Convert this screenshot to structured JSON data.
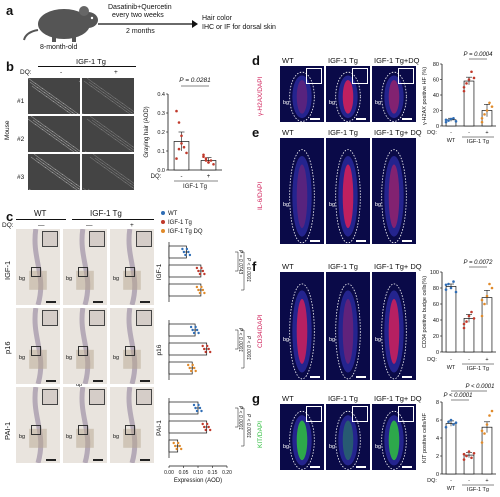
{
  "panel_labels": [
    "a",
    "b",
    "c",
    "d",
    "e",
    "f",
    "g"
  ],
  "panel_a": {
    "mouse_label": "8-month-old",
    "treatment_line1": "Dasatinib+Quercetin",
    "treatment_line2": "every two weeks",
    "duration": "2 months",
    "outcome_line1": "Hair color",
    "outcome_line2": "IHC or IF for dorsal skin"
  },
  "panel_b": {
    "group_header": "IGF-1 Tg",
    "dq_label": "DQ:",
    "dq_minus": "-",
    "dq_plus": "+",
    "row_axis": "Mouse",
    "rows": [
      "#1",
      "#2",
      "#3"
    ]
  },
  "panel_c": {
    "header_wt": "WT",
    "header_tg": "IGF-1 Tg",
    "dq_label": "DQ:",
    "dq_marks": [
      "—",
      "—",
      "+"
    ],
    "row_labels": [
      "IGF-1",
      "p16",
      "PAI-1"
    ],
    "bg_label": "bg",
    "dp_label": "dp"
  },
  "panel_d": {
    "headers": [
      "WT",
      "IGF-1 Tg",
      "IGF-1 Tg+DQ"
    ],
    "stain": "γ-H2AX/DAPI",
    "bg_label": "bg"
  },
  "panel_e": {
    "headers": [
      "WT",
      "IGF-1 Tg",
      "IGF-1 Tg+ DQ"
    ],
    "stain": "IL-6/DAPI",
    "bg_label": "bg"
  },
  "panel_f": {
    "headers": [
      "WT",
      "IGF-1 Tg",
      "IGF-1 Tg+ DQ"
    ],
    "stain": "CD34/DAPI",
    "bg_label": "bg"
  },
  "panel_g": {
    "headers": [
      "WT",
      "IGF-1 Tg",
      "IGF-1 Tg+ DQ"
    ],
    "stain": "KIT/DAPI",
    "bg_label": "bg"
  },
  "colors": {
    "wt": "#2f6db5",
    "tg": "#c0392b",
    "tgdq": "#e08a2a",
    "ifred": "#d0205a",
    "ifgreen": "#2fbf3f"
  },
  "chart_data": [
    {
      "type": "bar",
      "panel": "b",
      "ylabel": "Graying hair (AOD)",
      "xlabel": "IGF-1 Tg",
      "dq_label": "DQ:",
      "categories": [
        "-",
        "+"
      ],
      "values": [
        0.15,
        0.05
      ],
      "errors": [
        0.05,
        0.015
      ],
      "points": [
        [
          0.31,
          0.25,
          0.18,
          0.12,
          0.09,
          0.06,
          0.11,
          0.14
        ],
        [
          0.08,
          0.06,
          0.04,
          0.05,
          0.03,
          0.07,
          0.05,
          0.04
        ]
      ],
      "ylim": [
        0,
        0.4
      ],
      "yticks": [
        "0.0",
        "0.1",
        "0.2",
        "0.3",
        "0.4"
      ],
      "pvalue": "P = 0.0281"
    },
    {
      "type": "bar",
      "panel": "c",
      "orientation": "horizontal",
      "xlabel": "Expression (AOD)",
      "xlim": [
        0,
        0.2
      ],
      "xticks": [
        "0.00",
        "0.05",
        "0.10",
        "0.15",
        "0.20"
      ],
      "legend": [
        "WT",
        "IGF-1 Tg",
        "IGF-1 Tg DQ"
      ],
      "groups": [
        {
          "name": "IGF-1",
          "values": [
            0.06,
            0.11,
            0.11
          ],
          "pvalues": [
            "P = 0.0743",
            "P < 0.0001"
          ]
        },
        {
          "name": "p16",
          "values": [
            0.09,
            0.13,
            0.08
          ],
          "pvalues": [
            "P < 0.0001",
            "P < 0.0001"
          ]
        },
        {
          "name": "PAI-1",
          "values": [
            0.1,
            0.13,
            0.03
          ],
          "pvalues": [
            "P < 0.0001",
            "P < 0.0001"
          ]
        }
      ]
    },
    {
      "type": "bar",
      "panel": "d",
      "ylabel": "γ-H2AX positive HF (%)",
      "categories": [
        "WT",
        "IGF-1 Tg",
        "IGF-1 Tg DQ"
      ],
      "dq_label": "DQ:",
      "dq_marks": [
        "-",
        "-",
        "+"
      ],
      "group_label": "IGF-1 Tg",
      "values": [
        8,
        58,
        20
      ],
      "errors": [
        2,
        5,
        8
      ],
      "points": [
        [
          5,
          7,
          9,
          10,
          6,
          8
        ],
        [
          45,
          55,
          60,
          70,
          62,
          50
        ],
        [
          5,
          15,
          20,
          30,
          25,
          10
        ]
      ],
      "ylim": [
        0,
        80
      ],
      "yticks": [
        "0",
        "20",
        "40",
        "60",
        "80"
      ],
      "pvalue": "P = 0.0004"
    },
    {
      "type": "bar",
      "panel": "f",
      "ylabel": "CD34 positive budge cells(%)",
      "categories": [
        "WT",
        "IGF-1 Tg",
        "IGF-1 Tg DQ"
      ],
      "dq_label": "DQ:",
      "dq_marks": [
        "-",
        "-",
        "+"
      ],
      "group_label": "IGF-1 Tg",
      "values": [
        82,
        42,
        68
      ],
      "errors": [
        3,
        5,
        9
      ],
      "points": [
        [
          78,
          85,
          80,
          88,
          75,
          84
        ],
        [
          30,
          38,
          45,
          50,
          42,
          35
        ],
        [
          45,
          60,
          70,
          85,
          80,
          65
        ]
      ],
      "ylim": [
        0,
        100
      ],
      "yticks": [
        "0",
        "20",
        "40",
        "60",
        "80",
        "100"
      ],
      "pvalue": "P = 0.0072"
    },
    {
      "type": "bar",
      "panel": "g",
      "ylabel": "KIT positive cells/HF",
      "categories": [
        "WT",
        "IGF-1 Tg",
        "IGF-1 Tg DQ"
      ],
      "dq_label": "DQ:",
      "dq_marks": [
        "-",
        "-",
        "+"
      ],
      "group_label": "IGF-1 Tg",
      "values": [
        5.6,
        2.1,
        5.2
      ],
      "errors": [
        0.3,
        0.3,
        0.6
      ],
      "points": [
        [
          5.2,
          5.8,
          6.0,
          5.5,
          5.7
        ],
        [
          1.6,
          2.0,
          2.5,
          1.8,
          2.3,
          2.2
        ],
        [
          3.5,
          4.5,
          5.5,
          6.5,
          7.0,
          4.8
        ]
      ],
      "ylim": [
        0,
        8
      ],
      "yticks": [
        "0",
        "2",
        "4",
        "6",
        "8"
      ],
      "pvalues": [
        "P < 0.0001",
        "P < 0.0001"
      ]
    }
  ]
}
